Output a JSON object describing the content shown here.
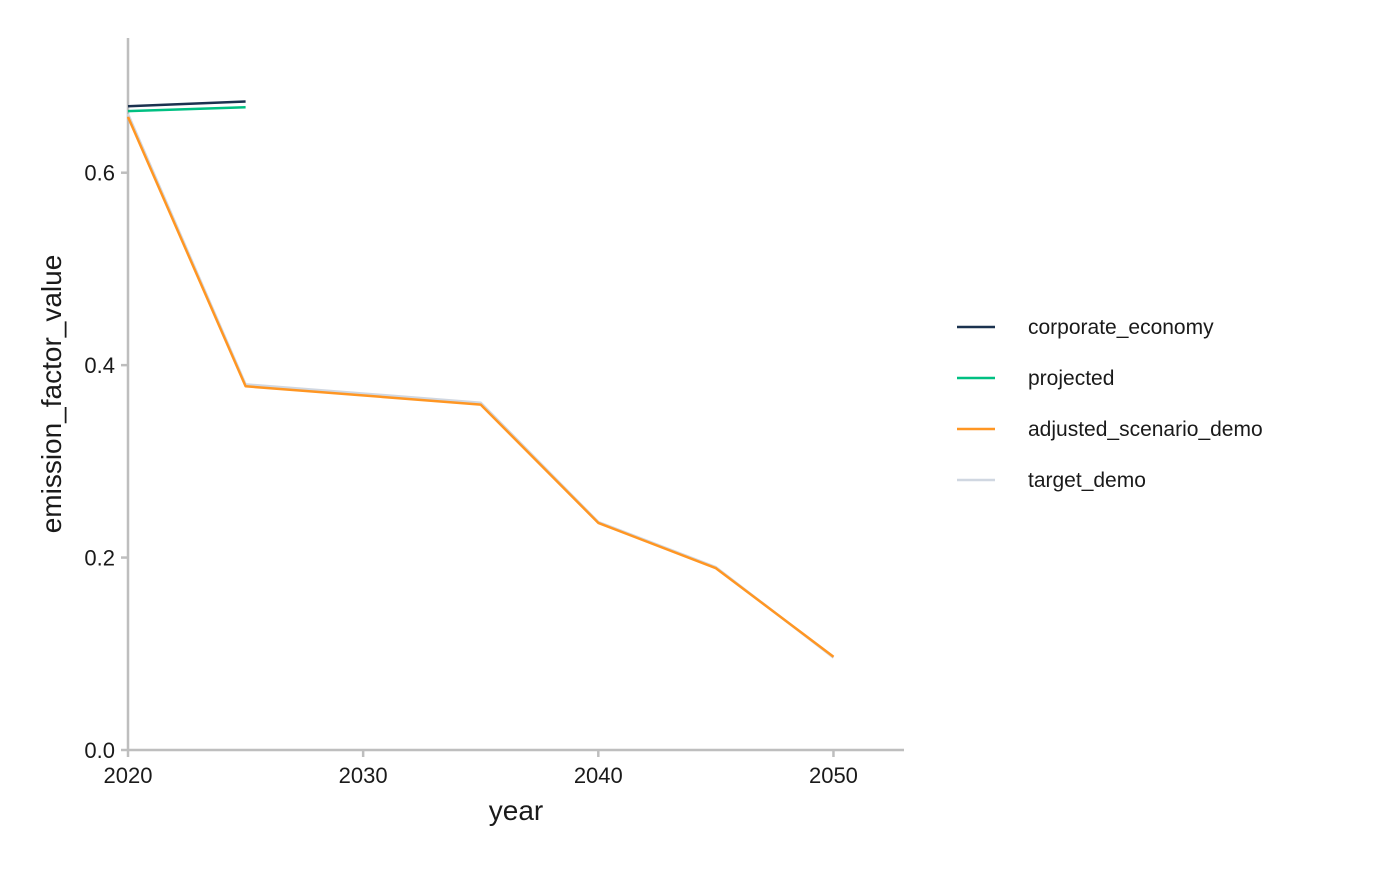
{
  "chart_data": {
    "type": "line",
    "title": "",
    "xlabel": "year",
    "ylabel": "emission_factor_value",
    "xlim": [
      2020,
      2053
    ],
    "ylim": [
      0,
      0.74
    ],
    "x_ticks": [
      2020,
      2030,
      2040,
      2050
    ],
    "y_ticks": [
      0.0,
      0.2,
      0.4,
      0.6
    ],
    "x_tick_labels": [
      "2020",
      "2030",
      "2040",
      "2050"
    ],
    "y_tick_labels": [
      "0.0",
      "0.2",
      "0.4",
      "0.6"
    ],
    "grid": false,
    "legend_position": "right",
    "series": [
      {
        "name": "corporate_economy",
        "color": "#1b324f",
        "points": [
          [
            2020,
            0.669
          ],
          [
            2025,
            0.674
          ]
        ]
      },
      {
        "name": "projected",
        "color": "#00c082",
        "points": [
          [
            2020,
            0.664
          ],
          [
            2025,
            0.668
          ]
        ]
      },
      {
        "name": "adjusted_scenario_demo",
        "color": "#ff9623",
        "points": [
          [
            2020,
            0.658
          ],
          [
            2025,
            0.378
          ],
          [
            2035,
            0.359
          ],
          [
            2040,
            0.236
          ],
          [
            2045,
            0.189
          ],
          [
            2050,
            0.097
          ]
        ]
      },
      {
        "name": "target_demo",
        "color": "#d0d7e1",
        "points": [
          [
            2020,
            0.661
          ],
          [
            2025,
            0.38
          ],
          [
            2035,
            0.361
          ],
          [
            2040,
            0.237
          ],
          [
            2045,
            0.19
          ],
          [
            2050,
            0.096
          ]
        ]
      }
    ]
  }
}
